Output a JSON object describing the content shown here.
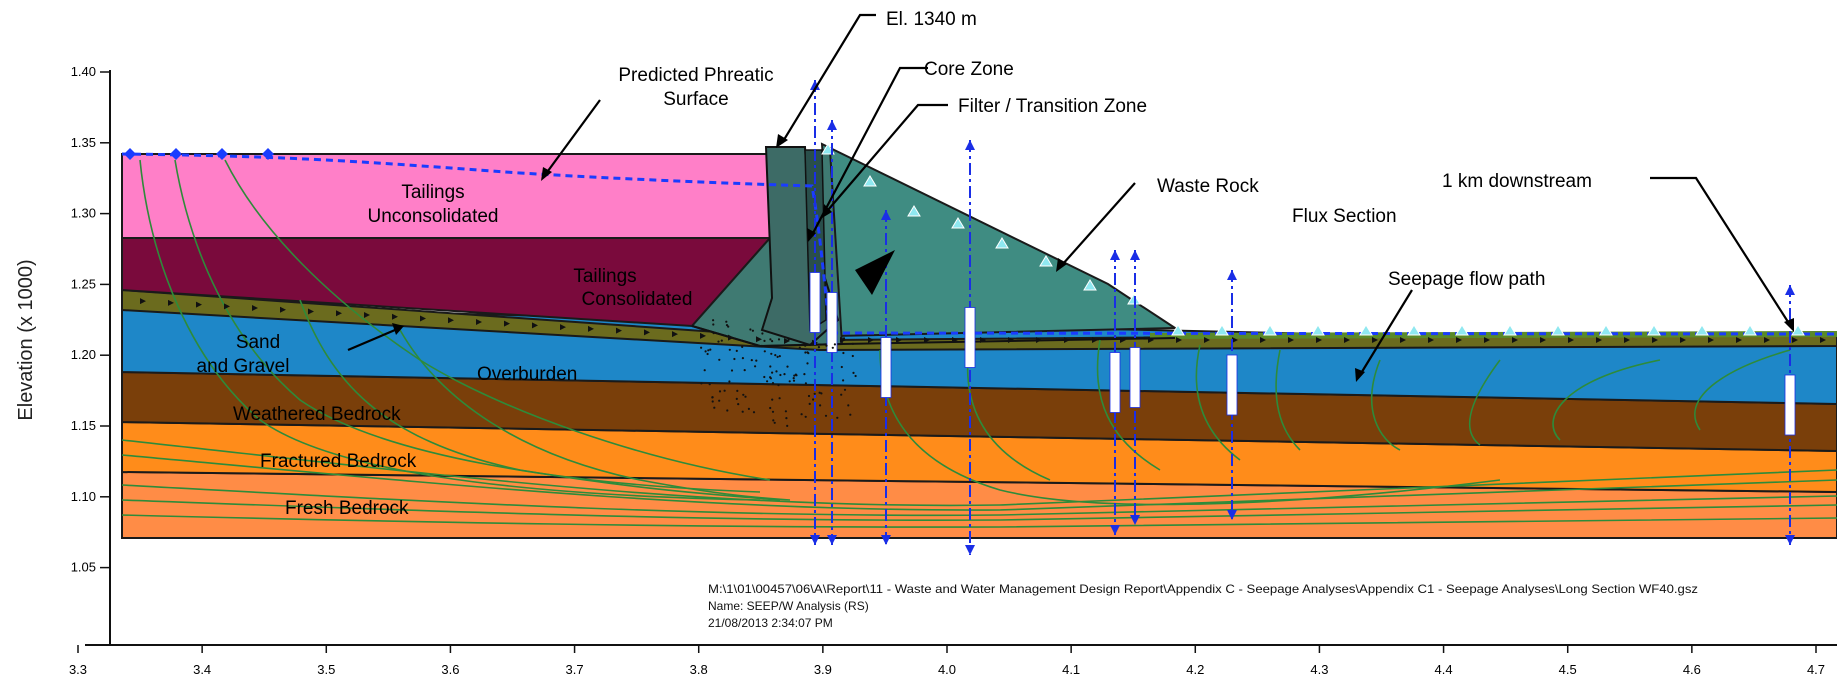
{
  "axes": {
    "y_label": "Elevation (x  1000)",
    "x_ticks": [
      "3.3",
      "3.4",
      "3.5",
      "3.6",
      "3.7",
      "3.8",
      "3.9",
      "4.0",
      "4.1",
      "4.2",
      "4.3",
      "4.4",
      "4.5",
      "4.6",
      "4.7"
    ],
    "y_ticks": [
      "1.40",
      "1.35",
      "1.30",
      "1.25",
      "1.20",
      "1.15",
      "1.10",
      "1.05"
    ]
  },
  "labels": {
    "el_1340": "El. 1340 m",
    "core_zone": "Core Zone",
    "filter_zone": "Filter / Transition Zone",
    "phreatic_1": "Predicted Phreatic",
    "phreatic_2": "Surface",
    "tailings_unc_1": "Tailings",
    "tailings_unc_2": "Unconsolidated",
    "tailings_con_1": "Tailings",
    "tailings_con_2": "Consolidated",
    "waste_rock": "Waste Rock",
    "flux_section": "Flux Section",
    "km_downstream": "1 km downstream",
    "seepage_path": "Seepage flow path",
    "sand_1": "Sand",
    "sand_2": "and Gravel",
    "overburden": "Overburden",
    "weathered": "Weathered  Bedrock",
    "fractured": "Fractured Bedrock",
    "fresh": "Fresh Bedrock"
  },
  "file_info": {
    "path": "M:\\1\\01\\00457\\06\\A\\Report\\11 - Waste and Water Management Design Report\\Appendix C - Seepage Analyses\\Appendix C1 - Seepage Analyses\\Long Section WF40.gsz",
    "name": "Name: SEEP/W Analysis (RS)",
    "date": "21/08/2013 2:34:07 PM"
  },
  "colors": {
    "tailings_unconsolidated": "#ff7fc8",
    "tailings_consolidated": "#7a0a3c",
    "dam_core": "#3f7a72",
    "waste_rock": "#3f8c82",
    "sand_gravel": "#6b6b1e",
    "overburden": "#1e87c8",
    "weathered_bedrock": "#7a3f0a",
    "fractured_bedrock": "#ff8c1a",
    "fresh_bedrock": "#ff8c46",
    "phreatic_line": "#1a3cff",
    "flow_lines": "#2e8b3a",
    "flux_sections": "#1a2ee6"
  }
}
